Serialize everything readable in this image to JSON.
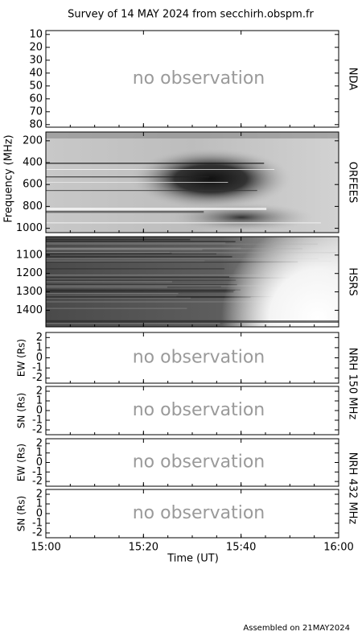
{
  "title": "Survey of 14 MAY 2024 from secchirh.obspm.fr",
  "footer": "Assembled on 21MAY2024",
  "frequency_label": "Frequency (MHz)",
  "x_axis": {
    "label": "Time (UT)",
    "ticks": [
      "15:00",
      "15:20",
      "15:40",
      "16:00"
    ]
  },
  "panels": [
    {
      "type": "empty",
      "name": "NDA",
      "ylim": [
        7,
        82
      ],
      "inverted": true,
      "yticks": [
        10,
        20,
        30,
        40,
        50,
        60,
        70,
        80
      ],
      "message": "no observation"
    },
    {
      "type": "spectrogram",
      "name": "ORFEES",
      "ylim": [
        120,
        1040
      ],
      "inverted": true,
      "yticks": [
        200,
        400,
        600,
        800,
        1000
      ]
    },
    {
      "type": "spectrogram",
      "name": "HSRS",
      "ylim": [
        1000,
        1490
      ],
      "inverted": true,
      "yticks": [
        1100,
        1200,
        1300,
        1400
      ]
    },
    {
      "type": "empty",
      "ylabel": "EW (Rs)",
      "ylim": [
        -2.5,
        2.5
      ],
      "inverted": false,
      "yticks": [
        -2,
        -1,
        0,
        1,
        2
      ],
      "message": "no observation"
    },
    {
      "type": "empty",
      "ylabel": "SN (Rs)",
      "ylim": [
        -2.5,
        2.5
      ],
      "inverted": false,
      "yticks": [
        -2,
        -1,
        0,
        1,
        2
      ],
      "message": "no observation"
    },
    {
      "type": "empty",
      "ylabel": "EW (Rs)",
      "ylim": [
        -2.5,
        2.5
      ],
      "inverted": false,
      "yticks": [
        -2,
        -1,
        0,
        1,
        2
      ],
      "message": "no observation"
    },
    {
      "type": "empty",
      "ylabel": "SN (Rs)",
      "ylim": [
        -2.5,
        2.5
      ],
      "inverted": false,
      "yticks": [
        -2,
        -1,
        0,
        1,
        2
      ],
      "message": "no observation"
    }
  ],
  "instruments": [
    "NRH 150 MHz",
    "NRH 432 MHz"
  ]
}
